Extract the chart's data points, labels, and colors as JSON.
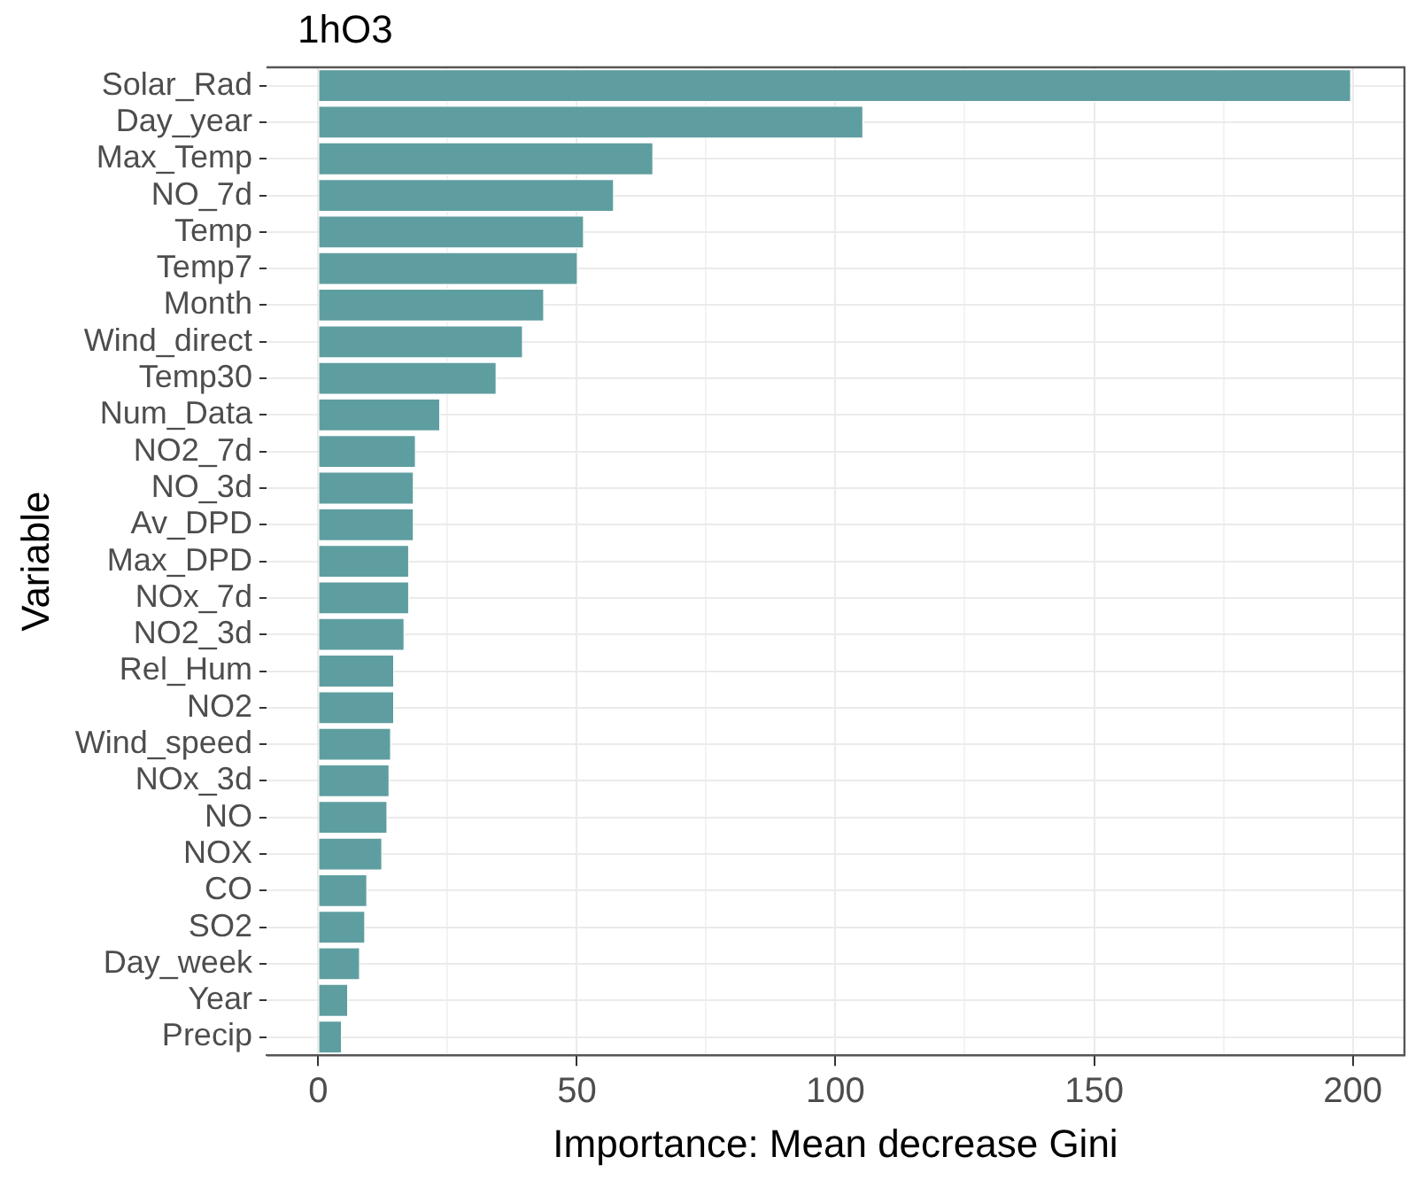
{
  "chart_data": {
    "type": "bar",
    "orientation": "horizontal",
    "title": "1hO3",
    "xlabel": "Importance: Mean decrease Gini",
    "ylabel": "Variable",
    "categories": [
      "Solar_Rad",
      "Day_year",
      "Max_Temp",
      "NO_7d",
      "Temp",
      "Temp7",
      "Month",
      "Wind_direct",
      "Temp30",
      "Num_Data",
      "NO2_7d",
      "NO_3d",
      "Av_DPD",
      "Max_DPD",
      "NOx_7d",
      "NO2_3d",
      "Rel_Hum",
      "NO2",
      "Wind_speed",
      "NOx_3d",
      "NO",
      "NOX",
      "CO",
      "SO2",
      "Day_week",
      "Year",
      "Precip"
    ],
    "values": [
      199.7,
      105.4,
      64.8,
      57.2,
      51.4,
      50.2,
      43.7,
      39.6,
      34.5,
      23.6,
      18.9,
      18.5,
      18.5,
      17.6,
      17.6,
      16.7,
      14.7,
      14.7,
      14.1,
      13.8,
      13.4,
      12.4,
      9.5,
      9.1,
      8.1,
      5.8,
      4.6
    ],
    "color": "#5f9ea0",
    "xlim": [
      -10,
      210
    ],
    "xticks": [
      0,
      {
        "value": 25,
        "label": null
      },
      50,
      {
        "value": 75,
        "label": null
      },
      100,
      {
        "value": 125,
        "label": null
      },
      150,
      {
        "value": 175,
        "label": null
      },
      200
    ],
    "grid": true
  }
}
